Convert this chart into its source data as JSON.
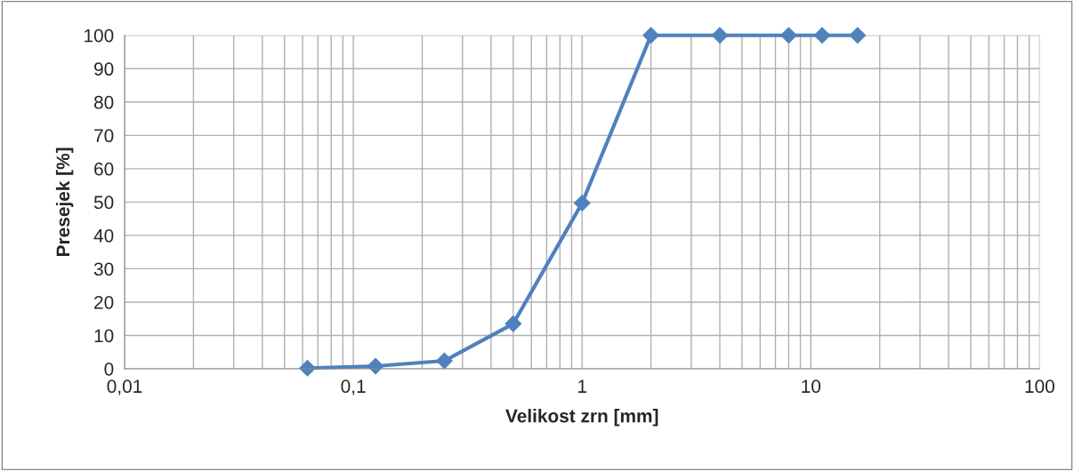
{
  "chart_data": {
    "type": "line",
    "xlabel": "Velikost zrn [mm]",
    "ylabel": "Presejek [%]",
    "x": [
      0.063,
      0.125,
      0.25,
      0.5,
      1,
      2,
      4,
      8,
      11.2,
      16
    ],
    "series": [
      {
        "color": "#4f81bd",
        "values": [
          0.2,
          0.8,
          2.4,
          13.5,
          49.7,
          100,
          100,
          100,
          100,
          100
        ]
      }
    ],
    "log": "x",
    "xlim": [
      0.01,
      100
    ],
    "xticks": [
      {
        "value": 0.01,
        "label": "0,01"
      },
      {
        "value": 0.1,
        "label": "0,1"
      },
      {
        "value": 1,
        "label": "1"
      },
      {
        "value": 10,
        "label": "10"
      },
      {
        "value": 100,
        "label": "100"
      }
    ],
    "ylim": [
      0,
      100
    ],
    "yticks": [
      0,
      10,
      20,
      30,
      40,
      50,
      60,
      70,
      80,
      90,
      100
    ],
    "grid": true,
    "marker": "diamond",
    "line_style": "solid"
  }
}
